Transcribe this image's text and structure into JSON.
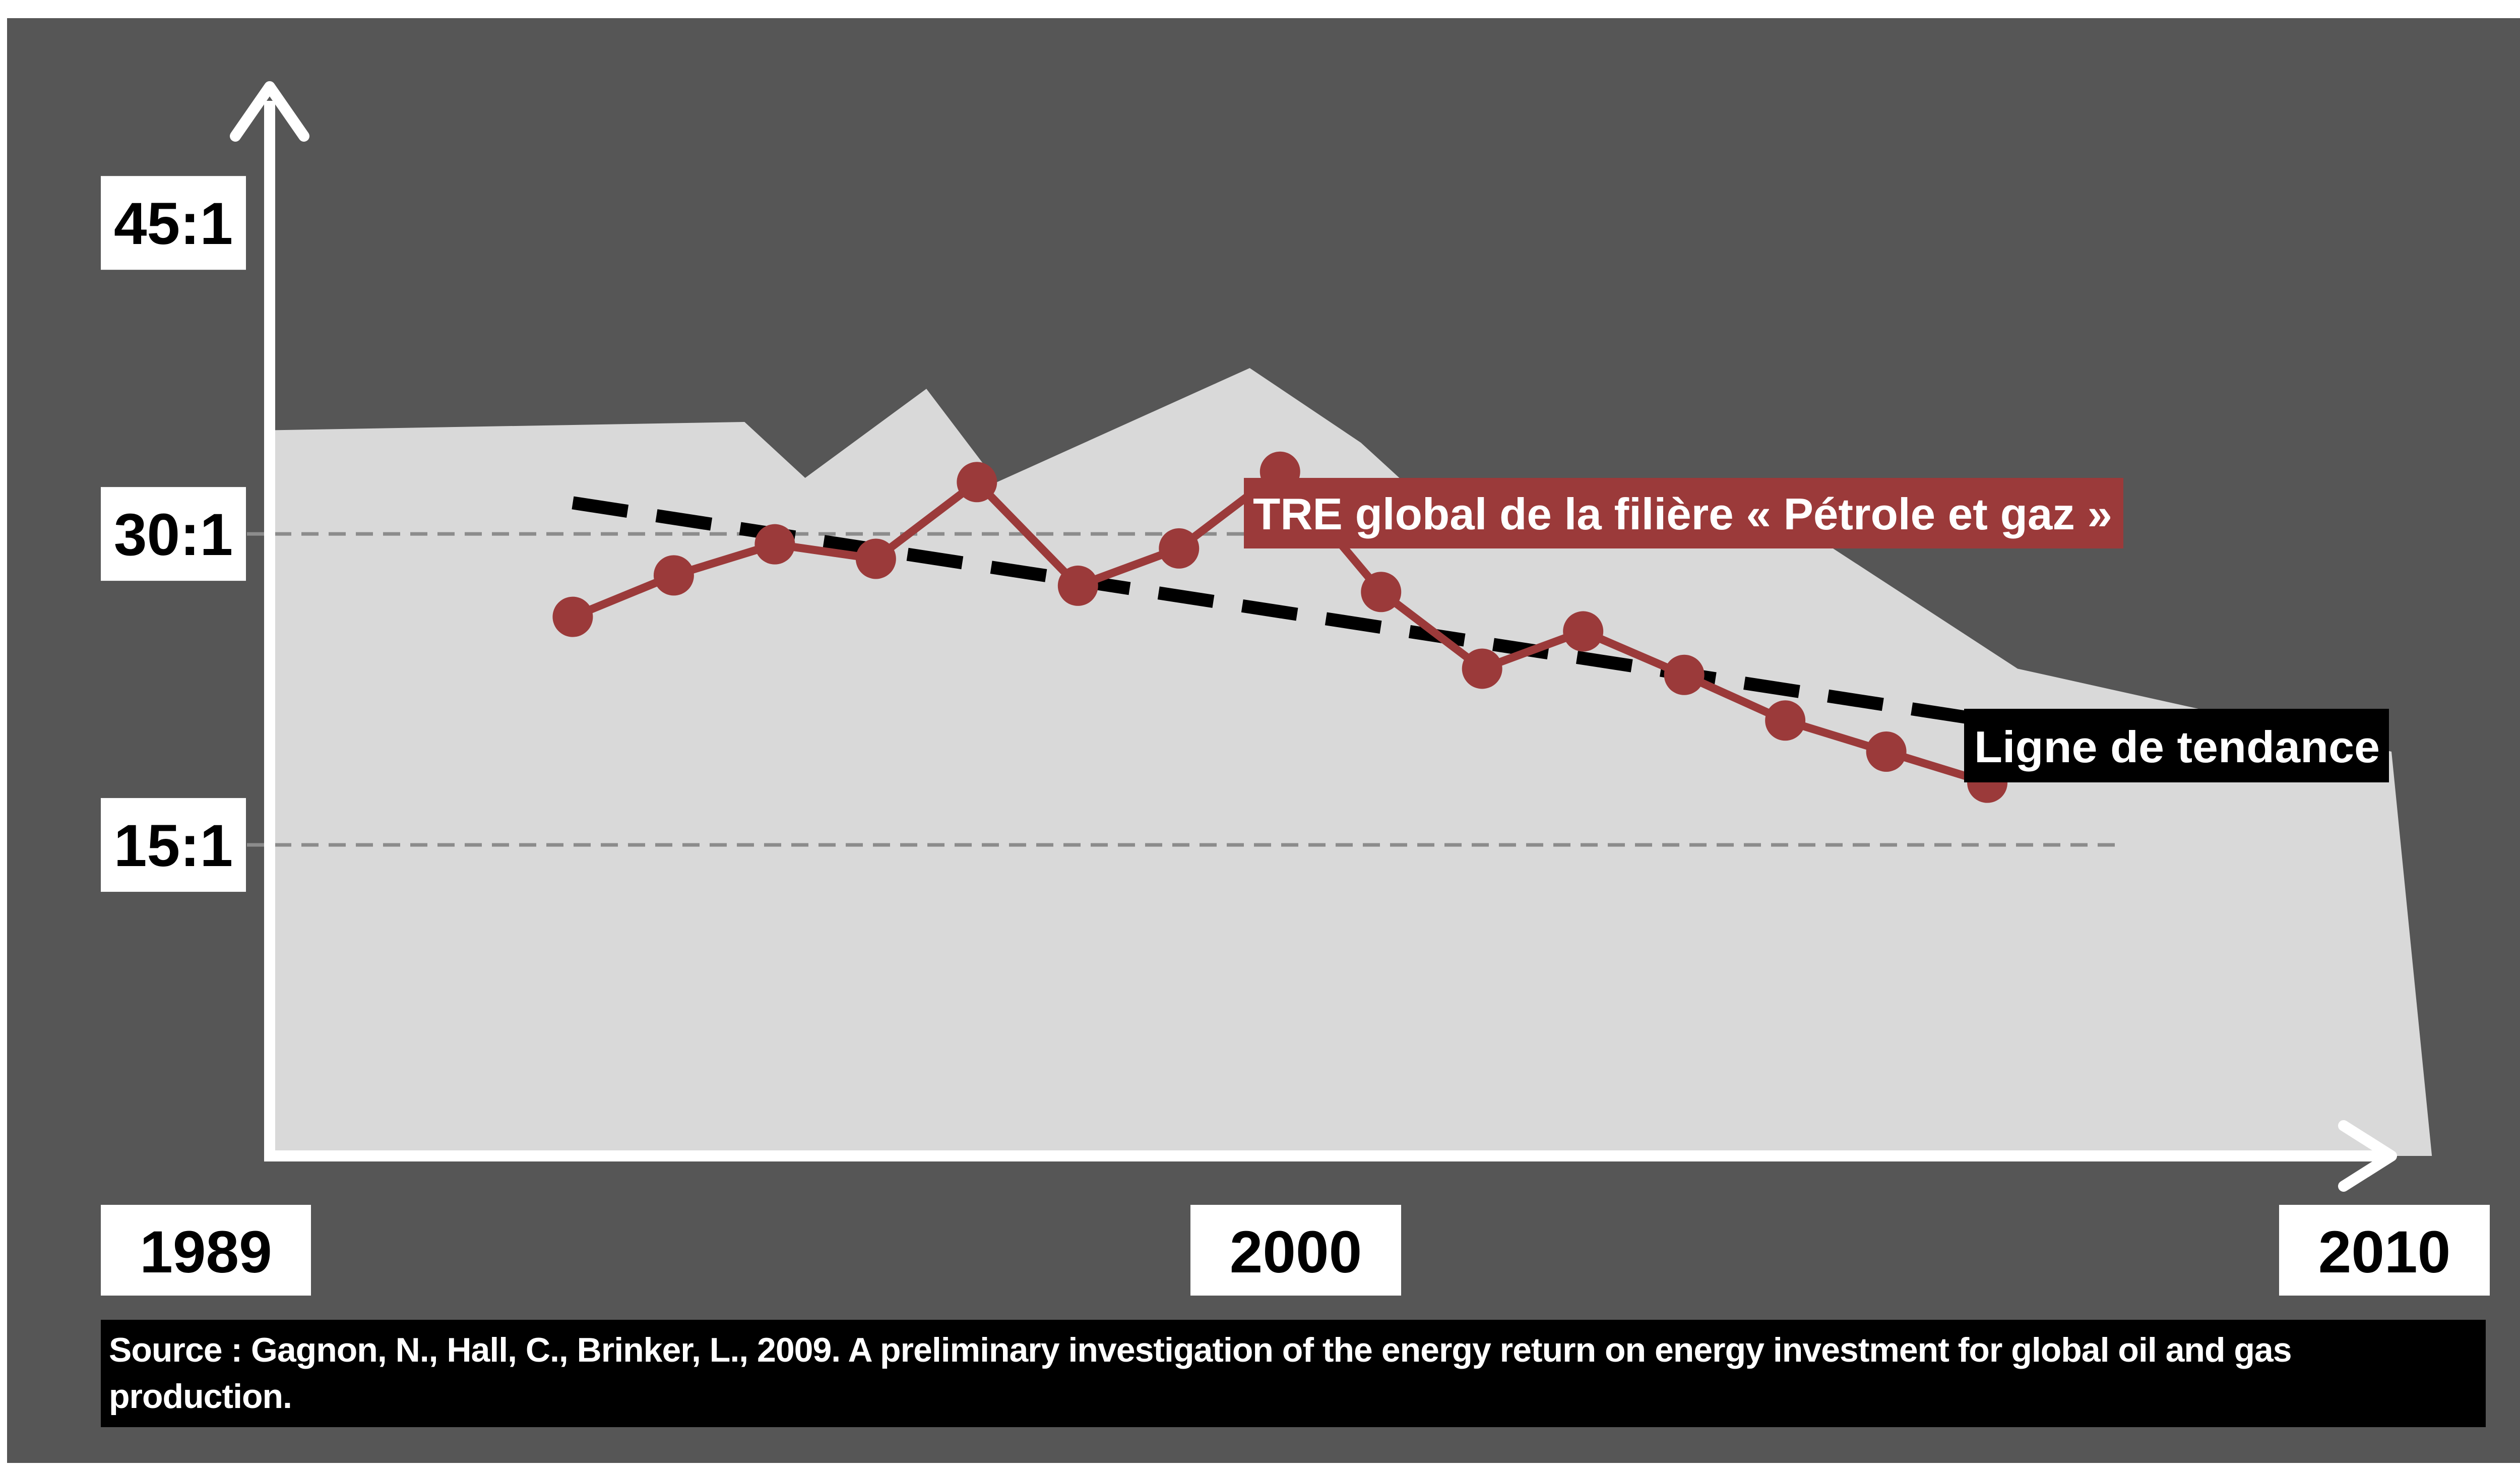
{
  "chart_data": {
    "type": "line",
    "title": "",
    "xlabel": "",
    "ylabel": "",
    "x_ticks": [
      {
        "label": "1989",
        "value": 1989
      },
      {
        "label": "2000",
        "value": 2000
      },
      {
        "label": "2010",
        "value": 2010
      }
    ],
    "y_ticks": [
      {
        "label": "15:1",
        "value": 15
      },
      {
        "label": "30:1",
        "value": 30
      },
      {
        "label": "45:1",
        "value": 45
      }
    ],
    "xlim": [
      1989,
      2010
    ],
    "ylim": [
      0,
      54
    ],
    "grid": "dashed lines at 15:1 and 30:1",
    "series": [
      {
        "name": "TRE global de la filière « Pétrole et gaz »",
        "type": "line-markers",
        "color": "#9b3a3a",
        "x": [
          1992,
          1993,
          1994,
          1995,
          1996,
          1997,
          1998,
          1999,
          2000,
          2001,
          2002,
          2003,
          2004,
          2005,
          2006
        ],
        "y": [
          26,
          28,
          29.5,
          28.8,
          32.5,
          27.5,
          29.3,
          33,
          27.2,
          23.5,
          25.3,
          23.2,
          21,
          19.5,
          18
        ]
      },
      {
        "name": "Ligne de tendance",
        "type": "dashed-line",
        "color": "#000000",
        "x": [
          1992,
          2006
        ],
        "y": [
          31.5,
          21
        ]
      }
    ],
    "area": {
      "color": "#d9d9d9",
      "x": [
        1989,
        1993.7,
        1994.3,
        1995.5,
        1996.2,
        1998.7,
        1999.8,
        2000.9,
        2004,
        2006.3,
        2010,
        2010.4
      ],
      "y": [
        35,
        35.4,
        32.7,
        37,
        32.5,
        38,
        34.4,
        29.5,
        30.8,
        23.5,
        19.5,
        0
      ]
    }
  },
  "source": {
    "text": "Source : Gagnon, N., Hall, C., Brinker, L., 2009. A preliminary investigation of the energy return on energy investment for global oil and gas production."
  },
  "colors": {
    "background": "#565656",
    "area": "#d9d9d9",
    "series": "#9b3a3a",
    "axis": "#ffffff",
    "trend": "#000000"
  }
}
